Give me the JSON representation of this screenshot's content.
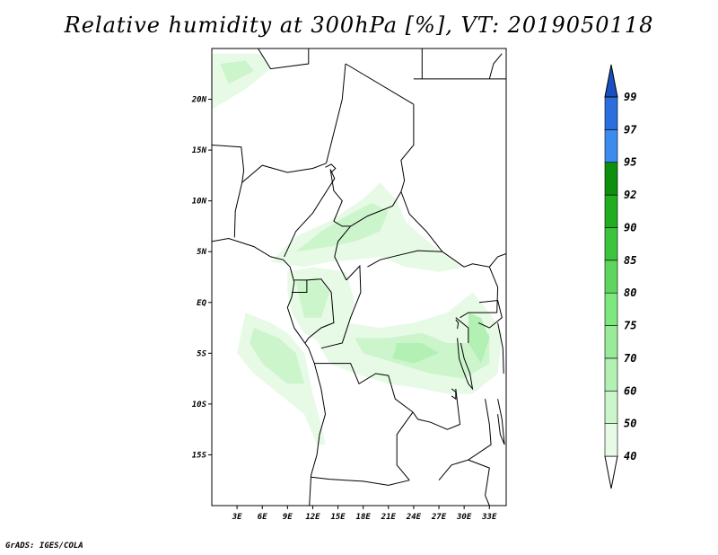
{
  "title": "Relative humidity at 300hPa [%], VT: 2019050118",
  "credit": "GrADS: IGES/COLA",
  "map": {
    "lon_range": [
      0,
      35
    ],
    "lat_range": [
      -20,
      25
    ],
    "lat_ticks": [
      {
        "value": 20,
        "label": "20N"
      },
      {
        "value": 15,
        "label": "15N"
      },
      {
        "value": 10,
        "label": "10N"
      },
      {
        "value": 5,
        "label": "5N"
      },
      {
        "value": 0,
        "label": "EQ"
      },
      {
        "value": -5,
        "label": "5S"
      },
      {
        "value": -10,
        "label": "10S"
      },
      {
        "value": -15,
        "label": "15S"
      }
    ],
    "lon_ticks": [
      {
        "value": 3,
        "label": "3E"
      },
      {
        "value": 6,
        "label": "6E"
      },
      {
        "value": 9,
        "label": "9E"
      },
      {
        "value": 12,
        "label": "12E"
      },
      {
        "value": 15,
        "label": "15E"
      },
      {
        "value": 18,
        "label": "18E"
      },
      {
        "value": 21,
        "label": "21E"
      },
      {
        "value": 24,
        "label": "24E"
      },
      {
        "value": 27,
        "label": "27E"
      },
      {
        "value": 30,
        "label": "30E"
      },
      {
        "value": 33,
        "label": "33E"
      }
    ]
  },
  "colorbar": {
    "levels": [
      "40",
      "50",
      "60",
      "70",
      "75",
      "80",
      "85",
      "90",
      "92",
      "95",
      "97",
      "99"
    ],
    "colors": [
      "#ffffff",
      "#e6fae6",
      "#ccf5cc",
      "#b3f0b3",
      "#99eb99",
      "#7de87d",
      "#5ed65e",
      "#3cc43c",
      "#20ad20",
      "#0e8f0e",
      "#3c8cf0",
      "#2a6fdd",
      "#1a4fc0"
    ]
  },
  "humidity_regions": [
    {
      "name": "nw-band",
      "level": 1,
      "points": [
        [
          0,
          24.5
        ],
        [
          6,
          24.5
        ],
        [
          7,
          23
        ],
        [
          4,
          21
        ],
        [
          1,
          19.5
        ],
        [
          0,
          19
        ]
      ]
    },
    {
      "name": "nw-band-core",
      "level": 2,
      "points": [
        [
          1,
          23.5
        ],
        [
          4,
          23.8
        ],
        [
          5,
          22.8
        ],
        [
          2,
          21.5
        ]
      ]
    },
    {
      "name": "sahel-band",
      "level": 1,
      "points": [
        [
          7,
          4
        ],
        [
          10,
          6.5
        ],
        [
          14,
          8
        ],
        [
          18,
          10.2
        ],
        [
          20,
          11.8
        ],
        [
          22,
          10
        ],
        [
          23,
          8
        ],
        [
          25,
          6.5
        ],
        [
          28,
          4.5
        ],
        [
          30,
          3.5
        ],
        [
          27,
          3
        ],
        [
          23,
          3.5
        ],
        [
          20,
          4.5
        ],
        [
          17,
          4.2
        ],
        [
          14,
          4
        ],
        [
          11,
          3.5
        ]
      ]
    },
    {
      "name": "sahel-band-core",
      "level": 2,
      "points": [
        [
          10,
          5
        ],
        [
          13,
          7
        ],
        [
          16,
          8.5
        ],
        [
          19,
          9.8
        ],
        [
          21,
          9
        ],
        [
          20,
          7
        ],
        [
          17,
          6
        ],
        [
          14,
          5.5
        ]
      ]
    },
    {
      "name": "gabon-congo",
      "level": 1,
      "points": [
        [
          9,
          3
        ],
        [
          12,
          3.5
        ],
        [
          16,
          3
        ],
        [
          17,
          0
        ],
        [
          16,
          -3
        ],
        [
          13,
          -4
        ],
        [
          11,
          -3
        ],
        [
          9.5,
          -1
        ],
        [
          9,
          1
        ]
      ]
    },
    {
      "name": "gabon-congo-core",
      "level": 2,
      "points": [
        [
          10,
          2
        ],
        [
          12.5,
          2.5
        ],
        [
          14,
          1
        ],
        [
          13,
          -1.5
        ],
        [
          11,
          -1.5
        ]
      ]
    },
    {
      "name": "coast-strip",
      "level": 1,
      "points": [
        [
          4,
          -1
        ],
        [
          7,
          -2
        ],
        [
          9,
          -3
        ],
        [
          11,
          -5
        ],
        [
          12,
          -9
        ],
        [
          13,
          -12
        ],
        [
          13.5,
          -14
        ],
        [
          12.5,
          -14
        ],
        [
          11,
          -11
        ],
        [
          8,
          -9
        ],
        [
          5,
          -7
        ],
        [
          3,
          -5
        ]
      ]
    },
    {
      "name": "coast-strip-core",
      "level": 2,
      "points": [
        [
          5,
          -2.5
        ],
        [
          8,
          -3.5
        ],
        [
          10,
          -5
        ],
        [
          11,
          -8
        ],
        [
          9,
          -8
        ],
        [
          6,
          -6
        ],
        [
          4.5,
          -4
        ]
      ]
    },
    {
      "name": "congo-basin",
      "level": 1,
      "points": [
        [
          12,
          -3
        ],
        [
          16,
          -2
        ],
        [
          20,
          -2.5
        ],
        [
          24,
          -2
        ],
        [
          28,
          -1
        ],
        [
          31,
          1
        ],
        [
          33,
          -1
        ],
        [
          34.5,
          -3
        ],
        [
          34,
          -7
        ],
        [
          31,
          -9
        ],
        [
          28,
          -9
        ],
        [
          25,
          -8.5
        ],
        [
          21,
          -8
        ],
        [
          17,
          -7
        ],
        [
          14,
          -6
        ]
      ]
    },
    {
      "name": "congo-basin-core",
      "level": 2,
      "points": [
        [
          17,
          -3.5
        ],
        [
          21,
          -3.5
        ],
        [
          25,
          -3
        ],
        [
          28,
          -4
        ],
        [
          31,
          -4
        ],
        [
          33,
          -3
        ],
        [
          33,
          -6
        ],
        [
          30,
          -7.5
        ],
        [
          26,
          -7
        ],
        [
          22,
          -6
        ],
        [
          18,
          -5
        ]
      ]
    },
    {
      "name": "congo-basin-inner",
      "level": 3,
      "points": [
        [
          22,
          -4
        ],
        [
          25,
          -4
        ],
        [
          27,
          -5
        ],
        [
          24,
          -6
        ],
        [
          21.5,
          -5.5
        ]
      ]
    },
    {
      "name": "east-lakes",
      "level": 3,
      "points": [
        [
          30.5,
          -1
        ],
        [
          32,
          -1.5
        ],
        [
          33,
          -3.5
        ],
        [
          32,
          -6
        ],
        [
          30.5,
          -4
        ]
      ]
    }
  ],
  "borders": [
    {
      "name": "coastline-west",
      "points": [
        [
          0,
          6
        ],
        [
          2,
          6.3
        ],
        [
          5,
          5.5
        ],
        [
          7,
          4.5
        ],
        [
          8.5,
          4.2
        ],
        [
          9.3,
          3.5
        ],
        [
          9.8,
          2
        ],
        [
          9.5,
          0.5
        ],
        [
          9,
          -0.5
        ],
        [
          9.8,
          -2.5
        ],
        [
          11.5,
          -4.5
        ],
        [
          12.2,
          -6
        ],
        [
          13,
          -8.5
        ],
        [
          13.5,
          -11
        ],
        [
          12.8,
          -13
        ],
        [
          12.5,
          -15
        ],
        [
          11.8,
          -17
        ],
        [
          11.6,
          -20
        ]
      ]
    },
    {
      "name": "east-coast",
      "points": [
        [
          34,
          -2
        ],
        [
          34.6,
          -4.5
        ],
        [
          34.7,
          -7
        ]
      ]
    },
    {
      "name": "algeria-niger",
      "points": [
        [
          5.5,
          25
        ],
        [
          7,
          23
        ],
        [
          11.5,
          23.5
        ],
        [
          11.5,
          25
        ]
      ]
    },
    {
      "name": "mali-niger",
      "points": [
        [
          0,
          15.5
        ],
        [
          3.5,
          15.3
        ],
        [
          3.8,
          13
        ],
        [
          3.6,
          11.8
        ]
      ]
    },
    {
      "name": "niger-nigeria",
      "points": [
        [
          3.6,
          11.8
        ],
        [
          6,
          13.5
        ],
        [
          9,
          12.8
        ],
        [
          12,
          13.2
        ],
        [
          13.6,
          13.7
        ]
      ]
    },
    {
      "name": "niger-chad",
      "points": [
        [
          13.6,
          13.7
        ],
        [
          15.5,
          20
        ],
        [
          15.9,
          23.5
        ]
      ]
    },
    {
      "name": "libya-chad",
      "points": [
        [
          15.9,
          23.5
        ],
        [
          24,
          19.5
        ]
      ]
    },
    {
      "name": "chad-sudan",
      "points": [
        [
          24,
          19.5
        ],
        [
          24,
          15.5
        ],
        [
          22.5,
          14
        ],
        [
          22.9,
          12
        ],
        [
          22.5,
          10.9
        ]
      ]
    },
    {
      "name": "egypt-sudan",
      "points": [
        [
          24,
          22
        ],
        [
          35,
          22
        ]
      ]
    },
    {
      "name": "egypt-libya",
      "points": [
        [
          25,
          22
        ],
        [
          25,
          25
        ]
      ]
    },
    {
      "name": "benin-nigeria",
      "points": [
        [
          2.7,
          6.4
        ],
        [
          2.8,
          9
        ],
        [
          3.6,
          11.8
        ]
      ]
    },
    {
      "name": "nigeria-cameroon",
      "points": [
        [
          8.6,
          4.5
        ],
        [
          10,
          7
        ],
        [
          12,
          8.8
        ],
        [
          13.3,
          10.5
        ],
        [
          14.6,
          12.2
        ],
        [
          14.1,
          13.1
        ]
      ]
    },
    {
      "name": "cameroon-chad",
      "points": [
        [
          14.1,
          13.1
        ],
        [
          14.5,
          11
        ],
        [
          15.5,
          10
        ],
        [
          14.5,
          8
        ],
        [
          15.5,
          7.5
        ],
        [
          16.5,
          7.5
        ]
      ]
    },
    {
      "name": "chad-car",
      "points": [
        [
          16.5,
          7.5
        ],
        [
          18.5,
          8.5
        ],
        [
          21.5,
          9.5
        ],
        [
          22.5,
          10.9
        ]
      ]
    },
    {
      "name": "car-sudan",
      "points": [
        [
          22.5,
          10.9
        ],
        [
          23.5,
          8.7
        ],
        [
          25.5,
          7
        ],
        [
          27.4,
          5
        ]
      ]
    },
    {
      "name": "car-drc",
      "points": [
        [
          18.5,
          3.5
        ],
        [
          20,
          4.2
        ],
        [
          22,
          4.6
        ],
        [
          24.5,
          5.1
        ],
        [
          27.4,
          5
        ]
      ]
    },
    {
      "name": "cameroon-car",
      "points": [
        [
          16.5,
          7.5
        ],
        [
          15,
          6
        ],
        [
          14.6,
          4.5
        ],
        [
          16,
          2.2
        ]
      ]
    },
    {
      "name": "eq-guinea-gabon",
      "points": [
        [
          9.8,
          2.2
        ],
        [
          11.3,
          2.2
        ],
        [
          11.3,
          1
        ],
        [
          9.5,
          1
        ]
      ]
    },
    {
      "name": "gabon-congo-border",
      "points": [
        [
          11.3,
          2.2
        ],
        [
          13,
          2.3
        ],
        [
          14.2,
          1
        ],
        [
          14.5,
          -2
        ],
        [
          13,
          -2.5
        ],
        [
          11.5,
          -3.5
        ],
        [
          11.1,
          -4
        ]
      ]
    },
    {
      "name": "congo-drc-border",
      "points": [
        [
          16,
          2.2
        ],
        [
          17.6,
          3.6
        ],
        [
          17.7,
          1
        ],
        [
          16.5,
          -1.5
        ],
        [
          15.5,
          -4
        ],
        [
          13,
          -4.5
        ]
      ]
    },
    {
      "name": "drc-angola",
      "points": [
        [
          12.2,
          -6
        ],
        [
          16.5,
          -6
        ],
        [
          17.5,
          -8
        ],
        [
          19.5,
          -7
        ],
        [
          21,
          -7.2
        ],
        [
          21.8,
          -9.5
        ],
        [
          23.9,
          -10.8
        ]
      ]
    },
    {
      "name": "drc-zambia",
      "points": [
        [
          23.9,
          -10.8
        ],
        [
          24.5,
          -11.5
        ],
        [
          26,
          -11.8
        ],
        [
          28,
          -12.5
        ],
        [
          29.5,
          -12
        ],
        [
          29,
          -8.5
        ]
      ]
    },
    {
      "name": "angola-zambia",
      "points": [
        [
          23.9,
          -10.8
        ],
        [
          22,
          -13
        ],
        [
          22,
          -16
        ],
        [
          23.5,
          -17.5
        ]
      ]
    },
    {
      "name": "angola-namibia",
      "points": [
        [
          11.8,
          -17.2
        ],
        [
          14,
          -17.4
        ],
        [
          18,
          -17.6
        ],
        [
          21,
          -18
        ],
        [
          23.5,
          -17.5
        ]
      ]
    },
    {
      "name": "east-africa",
      "points": [
        [
          27.4,
          5
        ],
        [
          30,
          3.5
        ],
        [
          31,
          3.8
        ],
        [
          33,
          3.5
        ],
        [
          34,
          4.5
        ],
        [
          35,
          4.8
        ]
      ]
    },
    {
      "name": "uganda-kenya",
      "points": [
        [
          33,
          3.5
        ],
        [
          34,
          1.5
        ],
        [
          33.9,
          -1
        ]
      ]
    },
    {
      "name": "tanzania-border",
      "points": [
        [
          29.5,
          -1.5
        ],
        [
          30.5,
          -1
        ],
        [
          33.9,
          -1
        ]
      ]
    },
    {
      "name": "rwanda-burundi",
      "points": [
        [
          29,
          -1.5
        ],
        [
          30.5,
          -2.5
        ],
        [
          30.5,
          -4
        ]
      ]
    },
    {
      "name": "zambia-malawi",
      "points": [
        [
          32.5,
          -9.5
        ],
        [
          33,
          -12
        ],
        [
          33.2,
          -14
        ],
        [
          30.5,
          -15.5
        ],
        [
          28.5,
          -16
        ],
        [
          27,
          -17.5
        ]
      ]
    },
    {
      "name": "mozambique",
      "points": [
        [
          30.5,
          -15.5
        ],
        [
          33,
          -16.3
        ],
        [
          32.5,
          -19
        ],
        [
          33,
          -20
        ]
      ]
    },
    {
      "name": "lake-tanganyika",
      "points": [
        [
          29.2,
          -3.5
        ],
        [
          29.4,
          -5.5
        ],
        [
          29.8,
          -6.5
        ],
        [
          30.5,
          -8
        ],
        [
          31,
          -8.5
        ],
        [
          30.7,
          -7
        ],
        [
          30,
          -5.5
        ],
        [
          29.6,
          -4
        ]
      ]
    },
    {
      "name": "lake-malawi",
      "points": [
        [
          34,
          -9.5
        ],
        [
          34.5,
          -11.5
        ],
        [
          34.8,
          -14
        ],
        [
          34.3,
          -13
        ],
        [
          34,
          -11
        ]
      ]
    },
    {
      "name": "lake-victoria",
      "points": [
        [
          31.8,
          0
        ],
        [
          34,
          0.2
        ],
        [
          34.5,
          -1.5
        ],
        [
          33,
          -2.5
        ],
        [
          31.7,
          -2
        ]
      ]
    },
    {
      "name": "lake-chad",
      "points": [
        [
          13.5,
          13.3
        ],
        [
          14.2,
          13.6
        ],
        [
          14.7,
          13.2
        ],
        [
          14.2,
          12.8
        ]
      ]
    },
    {
      "name": "lake-mweru",
      "points": [
        [
          28.5,
          -8.5
        ],
        [
          29,
          -8.8
        ],
        [
          29,
          -9.5
        ],
        [
          28.5,
          -9.2
        ]
      ]
    },
    {
      "name": "lake-kivu",
      "points": [
        [
          29,
          -1.7
        ],
        [
          29.3,
          -2
        ],
        [
          29.2,
          -2.6
        ]
      ]
    },
    {
      "name": "sudan-egypt-nile",
      "points": [
        [
          33,
          22
        ],
        [
          33.5,
          23.5
        ],
        [
          34.5,
          24.5
        ]
      ]
    }
  ]
}
